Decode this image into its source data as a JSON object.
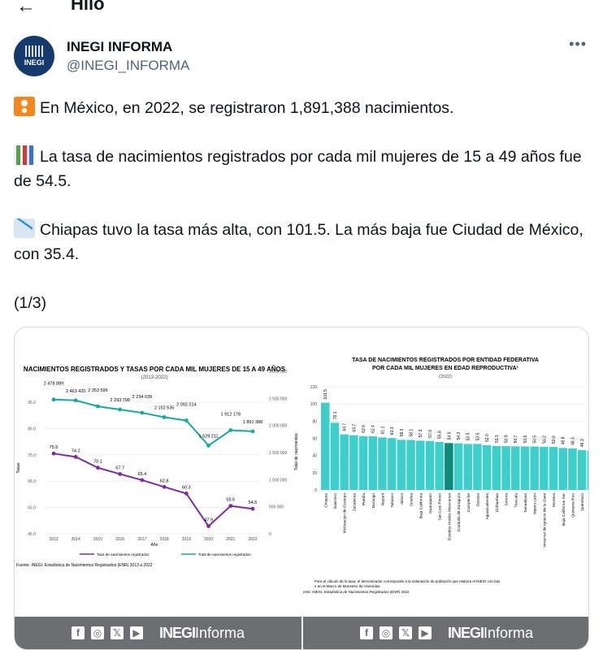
{
  "header": {
    "back_icon": "arrow-left-icon",
    "title": "Hilo"
  },
  "author": {
    "avatar_label": "INEGI",
    "display_name": "INEGI INFORMA",
    "handle": "@INEGI_INFORMA",
    "more_icon": "more-horizontal-icon"
  },
  "tweet": {
    "paragraphs": [
      {
        "emoji": "baby-symbol-icon",
        "text": "En México, en 2022, se registraron 1,891,388 nacimientos."
      },
      {
        "emoji": "bar-chart-icon",
        "text": "La tasa de nacimientos registrados por cada mil mujeres de 15 a 49 años fue de 54.5."
      },
      {
        "emoji": "chart-decreasing-icon",
        "text": "Chiapas tuvo la tasa más alta, con 101.5. La más baja fue Ciudad de México, con 35.4."
      }
    ],
    "thread_counter": "(1/3)"
  },
  "footer": {
    "icons": [
      "facebook-icon",
      "instagram-icon",
      "x-icon",
      "youtube-icon"
    ],
    "brand_bold": "INEGI",
    "brand_light": "Informa"
  },
  "chart_data": [
    {
      "type": "line",
      "title": "Nacimientos registrados y tasas por cada mil mujeres de 15 a 49 años",
      "subtitle": "(2013-2022)",
      "xlabel": "Año",
      "ylabel": "Tasas",
      "y2label": "Total de nacimientos",
      "x": [
        "2013",
        "2014",
        "2015",
        "2016",
        "2017",
        "2018",
        "2019",
        "2020",
        "2021",
        "2022"
      ],
      "ylim": [
        45.0,
        95.0
      ],
      "yticks": [
        "45.0",
        "55.0",
        "65.0",
        "75.0",
        "85.0",
        "95.0"
      ],
      "y2lim": [
        0,
        3000000
      ],
      "y2ticks": [
        "0",
        "500 000",
        "1 000 000",
        "1 500 000",
        "2 000 000",
        "2 500 000",
        "3 000 000"
      ],
      "series": [
        {
          "name": "Tasa de nacimientos registrados",
          "color": "#7b2d9e",
          "axis": "left",
          "values": [
            75.5,
            74.2,
            70.1,
            67.7,
            65.4,
            62.8,
            60.3,
            47.9,
            55.6,
            54.5
          ],
          "labels": [
            "75.5",
            "74.2",
            "70.1",
            "67.7",
            "65.4",
            "62.8",
            "60.3",
            "47.9",
            "55.6",
            "54.5"
          ]
        },
        {
          "name": "Total de nacimientos registrados",
          "color": "#1aa79c",
          "axis": "right",
          "values": [
            2478889,
            2463420,
            2353596,
            2293708,
            2234039,
            2152535,
            2092214,
            1629211,
            1912178,
            1891388
          ],
          "labels": [
            "2 478 889",
            "2 463 420",
            "2 353 596",
            "2 293 708",
            "2 234 039",
            "2 152 535",
            "2 092 214",
            "1 629 211",
            "1 912 178",
            "1 891 388"
          ]
        }
      ],
      "source": "Fuente: INEGI. Estadística de Nacimientos Registrados (ENR) 2013 a 2022",
      "legend": "bottom"
    },
    {
      "type": "bar",
      "title": "Tasa de nacimientos registrados por entidad federativa",
      "title2": "por cada mil mujeres en edad reproductiva¹",
      "subtitle": "(2022)",
      "ylim": [
        0,
        120
      ],
      "yticks": [
        "0",
        "20",
        "40",
        "60",
        "80",
        "100",
        "120"
      ],
      "bar_color": "#3fcfcb",
      "highlight_color": "#0b8a7a",
      "highlight": "Estados Unidos Mexicanos",
      "categories": [
        "Chiapas",
        "Guerrero",
        "Michoacán de Ocampo",
        "Zacatecas",
        "Puebla",
        "Durango",
        "Nayarit",
        "Tabasco",
        "Jalisco",
        "Sinaloa",
        "Baja California",
        "Guanajuato",
        "San Luis Potosí",
        "Estados Unidos Mexicanos",
        "Coahuila de Zaragoza",
        "Campeche",
        "Oaxaca",
        "Aguascalientes",
        "Chihuahua",
        "Sonora",
        "Tlaxcala",
        "Tamaulipas",
        "Nuevo León",
        "Veracruz de Ignacio de la Llave",
        "Morelos",
        "Baja California Sur",
        "Quintana Roo",
        "Querétaro",
        "México",
        "Colima",
        "Hidalgo",
        "Yucatán",
        "Ciudad de México"
      ],
      "values": [
        101.5,
        78.1,
        64.7,
        63.7,
        62.6,
        62.4,
        61.1,
        60.3,
        58.3,
        58.1,
        57.3,
        57.0,
        55.8,
        54.5,
        54.3,
        53.5,
        53.5,
        52.0,
        51.1,
        50.9,
        50.7,
        50.6,
        50.5,
        50.2,
        50.0,
        48.8,
        48.3,
        46.3,
        45.5,
        44.8,
        44.2,
        43.0,
        35.4
      ],
      "footnote": "Para el cálculo de la tasa, el denominador corresponde a la estimación de población que elabora el INEGI con base en el Marco de Muestreo de Viviendas.",
      "source": "ente: INEGI. Estadística de Nacimientos Registrados (ENR) 2022"
    }
  ]
}
